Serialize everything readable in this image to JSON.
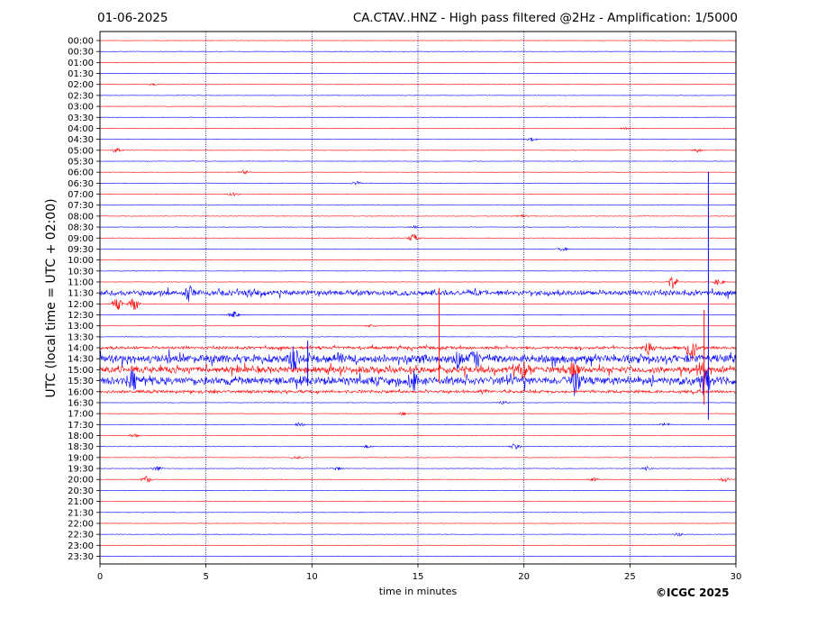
{
  "header": {
    "date": "01-06-2025",
    "title": "CA.CTAV..HNZ - High pass filtered @2Hz - Amplification: 1/5000"
  },
  "footer": {
    "copyright": "©ICGC 2025"
  },
  "chart_data": {
    "type": "line",
    "xlabel": "time in minutes",
    "ylabel": "UTC (local time = UTC + 02:00)",
    "xlim": [
      0,
      30
    ],
    "xticks": [
      0,
      5,
      10,
      15,
      20,
      25,
      30
    ],
    "grid_x": [
      5,
      10,
      15,
      20,
      25
    ],
    "row_labels": [
      "00:00",
      "00:30",
      "01:00",
      "01:30",
      "02:00",
      "02:30",
      "03:00",
      "03:30",
      "04:00",
      "04:30",
      "05:00",
      "05:30",
      "06:00",
      "06:30",
      "07:00",
      "07:30",
      "08:00",
      "08:30",
      "09:00",
      "09:30",
      "10:00",
      "10:30",
      "11:00",
      "11:30",
      "12:00",
      "12:30",
      "13:00",
      "13:30",
      "14:00",
      "14:30",
      "15:00",
      "15:30",
      "16:00",
      "16:30",
      "17:00",
      "17:30",
      "18:00",
      "18:30",
      "19:00",
      "19:30",
      "20:00",
      "20:30",
      "21:00",
      "21:30",
      "22:00",
      "22:30",
      "23:00",
      "23:30"
    ],
    "trace_colors": [
      "#ff0000",
      "#0000ff"
    ],
    "events": [
      {
        "row": "02:00",
        "t": 2.5,
        "amp": 1
      },
      {
        "row": "04:00",
        "t": 24.8,
        "amp": 1
      },
      {
        "row": "04:30",
        "t": 20.4,
        "amp": 2
      },
      {
        "row": "05:00",
        "t": 0.8,
        "amp": 3
      },
      {
        "row": "05:00",
        "t": 28.2,
        "amp": 2
      },
      {
        "row": "06:00",
        "t": 6.8,
        "amp": 2
      },
      {
        "row": "06:30",
        "t": 12.1,
        "amp": 2
      },
      {
        "row": "07:00",
        "t": 6.3,
        "amp": 2
      },
      {
        "row": "08:00",
        "t": 19.9,
        "amp": 2
      },
      {
        "row": "08:30",
        "t": 14.9,
        "amp": 2
      },
      {
        "row": "09:00",
        "t": 14.8,
        "amp": 5
      },
      {
        "row": "09:30",
        "t": 21.8,
        "amp": 2
      },
      {
        "row": "11:00",
        "t": 27.0,
        "amp": 8
      },
      {
        "row": "11:00",
        "t": 29.2,
        "amp": 4
      },
      {
        "row": "11:30",
        "t": 4.2,
        "amp": 8
      },
      {
        "row": "11:30",
        "t": 7.2,
        "amp": 4
      },
      {
        "row": "12:00",
        "t": 0.8,
        "amp": 8
      },
      {
        "row": "12:00",
        "t": 1.6,
        "amp": 10
      },
      {
        "row": "12:30",
        "t": 6.3,
        "amp": 4
      },
      {
        "row": "13:00",
        "t": 12.8,
        "amp": 2
      },
      {
        "row": "14:00",
        "t": 25.9,
        "amp": 9
      },
      {
        "row": "14:00",
        "t": 27.9,
        "amp": 16
      },
      {
        "row": "14:30",
        "t": 9.1,
        "amp": 12
      },
      {
        "row": "14:30",
        "t": 16.9,
        "amp": 10
      },
      {
        "row": "14:30",
        "t": 17.7,
        "amp": 10
      },
      {
        "row": "15:00",
        "t": 20.0,
        "amp": 9
      },
      {
        "row": "15:00",
        "t": 22.4,
        "amp": 8
      },
      {
        "row": "15:00",
        "t": 28.4,
        "amp": 10
      },
      {
        "row": "15:30",
        "t": 1.5,
        "amp": 8
      },
      {
        "row": "15:30",
        "t": 14.8,
        "amp": 8
      },
      {
        "row": "15:30",
        "t": 22.5,
        "amp": 10
      },
      {
        "row": "15:30",
        "t": 28.5,
        "amp": 12
      },
      {
        "row": "16:00",
        "t": 18.1,
        "amp": 2
      },
      {
        "row": "16:30",
        "t": 19.0,
        "amp": 2
      },
      {
        "row": "17:00",
        "t": 14.3,
        "amp": 2
      },
      {
        "row": "17:30",
        "t": 9.4,
        "amp": 3
      },
      {
        "row": "17:30",
        "t": 26.7,
        "amp": 2
      },
      {
        "row": "18:00",
        "t": 1.6,
        "amp": 2
      },
      {
        "row": "18:30",
        "t": 19.6,
        "amp": 4
      },
      {
        "row": "18:30",
        "t": 12.6,
        "amp": 2
      },
      {
        "row": "19:00",
        "t": 9.3,
        "amp": 2
      },
      {
        "row": "19:30",
        "t": 2.7,
        "amp": 3
      },
      {
        "row": "19:30",
        "t": 11.2,
        "amp": 2
      },
      {
        "row": "19:30",
        "t": 25.8,
        "amp": 2
      },
      {
        "row": "20:00",
        "t": 2.2,
        "amp": 4
      },
      {
        "row": "20:00",
        "t": 29.5,
        "amp": 3
      },
      {
        "row": "20:00",
        "t": 23.3,
        "amp": 2
      },
      {
        "row": "22:30",
        "t": 27.3,
        "amp": 2
      }
    ],
    "spikes": [
      {
        "row": "10:30",
        "t": 28.7,
        "amp": 110
      },
      {
        "row": "13:00",
        "t": 16.0,
        "amp": 42
      },
      {
        "row": "14:00",
        "t": 28.5,
        "amp": 42
      },
      {
        "row": "14:30",
        "t": 9.8,
        "amp": 20
      }
    ],
    "noisy_rows": [
      {
        "row": "11:30",
        "amp": 3
      },
      {
        "row": "14:00",
        "amp": 1.5
      },
      {
        "row": "14:30",
        "amp": 5
      },
      {
        "row": "15:00",
        "amp": 4
      },
      {
        "row": "15:30",
        "amp": 5
      },
      {
        "row": "16:00",
        "amp": 1.5
      }
    ]
  }
}
